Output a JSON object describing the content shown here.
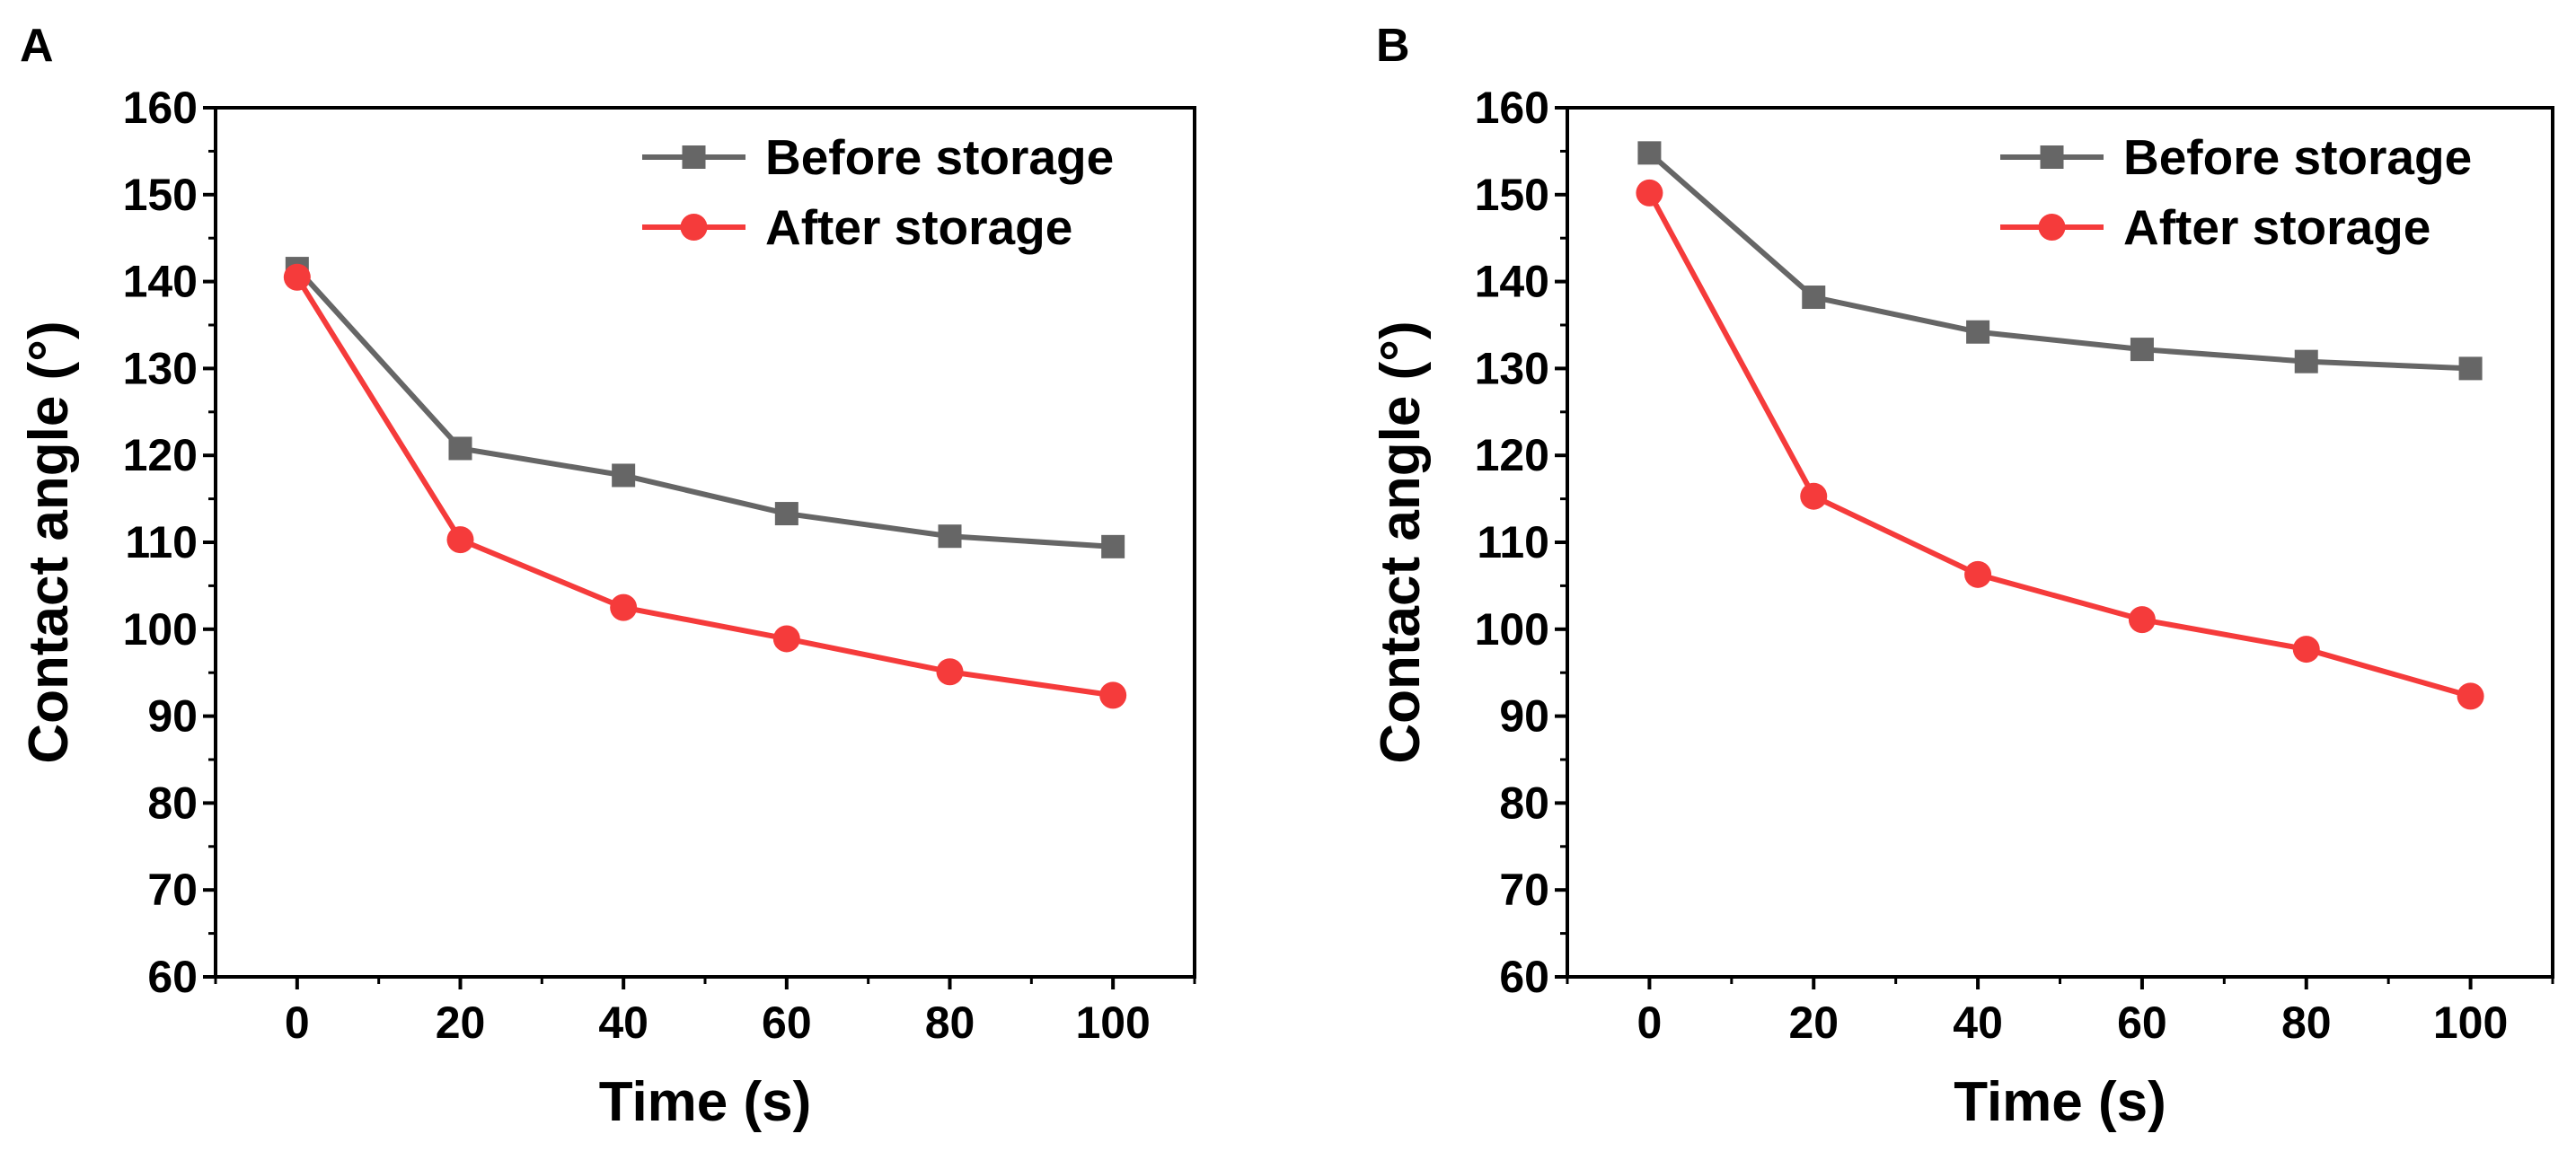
{
  "chart_data": [
    {
      "panel": "A",
      "type": "line",
      "title": "",
      "xlabel": "Time (s)",
      "ylabel": "Contact angle (°)",
      "xlim": [
        -10,
        110
      ],
      "ylim": [
        60,
        160
      ],
      "xticks": [
        0,
        20,
        40,
        60,
        80,
        100
      ],
      "yticks": [
        60,
        70,
        80,
        90,
        100,
        110,
        120,
        130,
        140,
        150,
        160
      ],
      "legend_position": "top-right",
      "series": [
        {
          "name": "Before storage",
          "marker": "square",
          "color": "#666666",
          "x": [
            0,
            20,
            40,
            60,
            80,
            100
          ],
          "y": [
            141.5,
            120.8,
            117.7,
            113.3,
            110.7,
            109.5
          ]
        },
        {
          "name": "After storage",
          "marker": "circle",
          "color": "#f53b3b",
          "x": [
            0,
            20,
            40,
            60,
            80,
            100
          ],
          "y": [
            140.5,
            110.3,
            102.5,
            98.9,
            95.1,
            92.4
          ]
        }
      ]
    },
    {
      "panel": "B",
      "type": "line",
      "title": "",
      "xlabel": "Time (s)",
      "ylabel": "Contact angle (°)",
      "xlim": [
        -10,
        110
      ],
      "ylim": [
        60,
        160
      ],
      "xticks": [
        0,
        20,
        40,
        60,
        80,
        100
      ],
      "yticks": [
        60,
        70,
        80,
        90,
        100,
        110,
        120,
        130,
        140,
        150,
        160
      ],
      "legend_position": "top-right",
      "series": [
        {
          "name": "Before storage",
          "marker": "square",
          "color": "#666666",
          "x": [
            0,
            20,
            40,
            60,
            80,
            100
          ],
          "y": [
            154.8,
            138.2,
            134.2,
            132.2,
            130.8,
            130.0
          ]
        },
        {
          "name": "After storage",
          "marker": "circle",
          "color": "#f53b3b",
          "x": [
            0,
            20,
            40,
            60,
            80,
            100
          ],
          "y": [
            150.2,
            115.3,
            106.3,
            101.1,
            97.7,
            92.3
          ]
        }
      ]
    }
  ]
}
